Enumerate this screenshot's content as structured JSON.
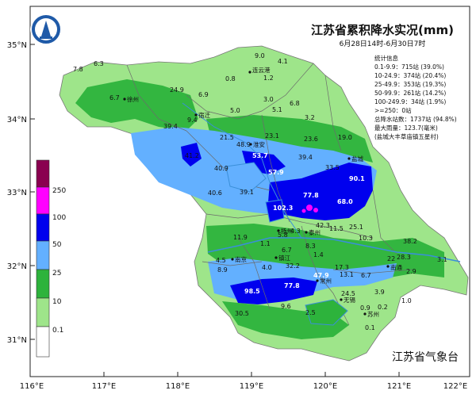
{
  "title": "江苏省累积降水实况(mm)",
  "period": "6月28日14时-6月30日7时",
  "stats": {
    "heading": "统计信息",
    "lines": [
      "0.1-9.9：715站 (39.0%)",
      "10-24.9：374站 (20.4%)",
      "25-49.9：353站 (19.3%)",
      "50-99.9：261站 (14.2%)",
      "100-249.9：34站 (1.9%)",
      ">=250：0站",
      "总降水站数：1737站 (94.8%)",
      "最大雨量：123.7(毫米)",
      "(盐城大丰草庙镇五星村)"
    ]
  },
  "agency": "江苏省气象台",
  "lat_labels": [
    "35°N",
    "34°N",
    "33°N",
    "32°N",
    "31°N"
  ],
  "lon_labels": [
    "116°E",
    "117°E",
    "118°E",
    "119°E",
    "120°E",
    "121°E",
    "122°E"
  ],
  "colorbar": {
    "labels": [
      "250",
      "100",
      "50",
      "25",
      "10",
      "0.1"
    ],
    "colors": [
      "#8a0050",
      "#ff00ff",
      "#0000ee",
      "#63b0ff",
      "#2db33c",
      "#9ee58a",
      "#ffffff"
    ]
  },
  "cities": [
    "连云港",
    "徐州",
    "宿迁",
    "淮安",
    "盐城",
    "扬州",
    "泰州",
    "南京",
    "镇江",
    "常州",
    "南通",
    "无锡",
    "苏州"
  ],
  "values": [
    "6.3",
    "7.8",
    "9.0",
    "4.1",
    "0.8",
    "1.2",
    "6.7",
    "24.9",
    "6.9",
    "3.0",
    "6.8",
    "5.0",
    "5.1",
    "3.2",
    "39.4",
    "9.4",
    "21.5",
    "48.9",
    "23.1",
    "23.6",
    "19.0",
    "41.2",
    "53.7",
    "57.9",
    "39.4",
    "33.5",
    "40.9",
    "90.1",
    "40.6",
    "39.1",
    "77.8",
    "102.3",
    "68.0",
    "42.3",
    "11.5",
    "25.1",
    "11.9",
    "1.1",
    "5.8",
    "4.3",
    "10.3",
    "38.2",
    "8.3",
    "6.7",
    "1.4",
    "4.5",
    "8.9",
    "32.2",
    "17.3",
    "22",
    "28.3",
    "3.1",
    "4.0",
    "47.9",
    "13.1",
    "6.7",
    "2.9",
    "98.5",
    "77.8",
    "24.5",
    "3.9",
    "9.6",
    "1.0",
    "30.5",
    "2.5",
    "0.9",
    "0.2",
    "0.1"
  ]
}
